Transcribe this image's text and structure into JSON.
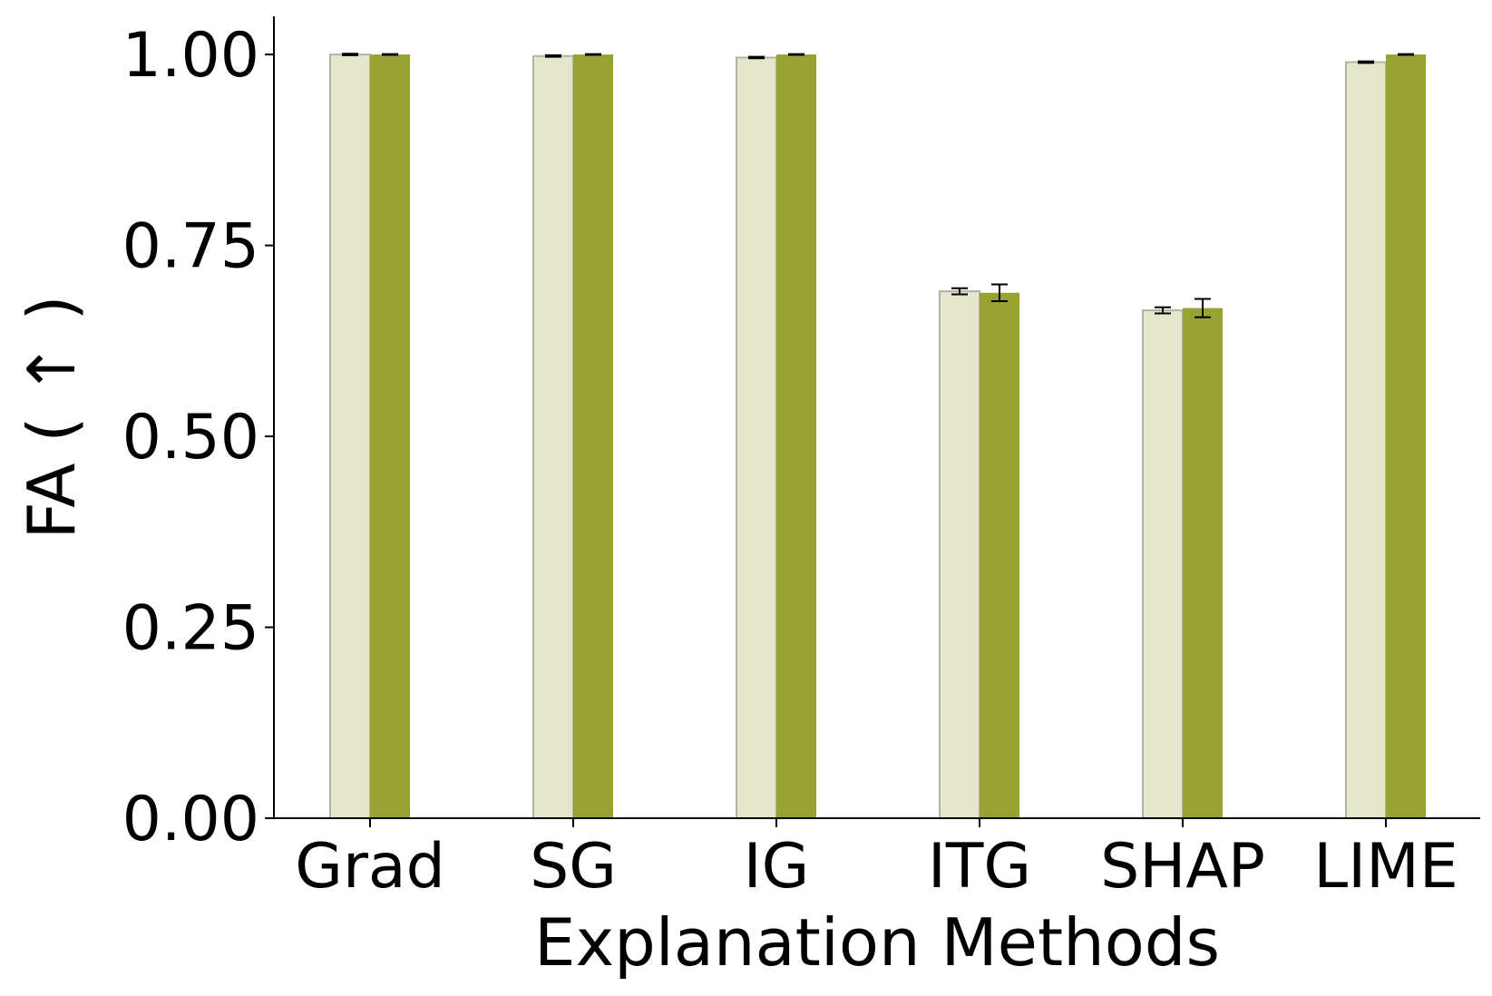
{
  "chart_data": {
    "type": "bar",
    "title": "",
    "xlabel": "Explanation Methods",
    "ylabel": "FA ( ↑ )",
    "categories": [
      "Grad",
      "SG",
      "IG",
      "ITG",
      "SHAP",
      "LIME"
    ],
    "ylim": [
      0,
      1.05
    ],
    "yticks": [
      0.0,
      0.25,
      0.5,
      0.75,
      1.0
    ],
    "ytick_labels": [
      "0.00",
      "0.25",
      "0.50",
      "0.75",
      "1.00"
    ],
    "series": [
      {
        "name": "series-1",
        "color": "#e4e7cc",
        "edge_color": "#b3b3a3",
        "values": [
          1.0,
          0.998,
          0.996,
          0.69,
          0.665,
          0.99
        ],
        "errors": [
          0.001,
          0.001,
          0.001,
          0.004,
          0.004,
          0.001
        ]
      },
      {
        "name": "series-2",
        "color": "#96a232",
        "edge_color": "#96a232",
        "values": [
          1.0,
          1.0,
          1.0,
          0.688,
          0.668,
          1.0
        ],
        "errors": [
          0.0005,
          0.0005,
          0.0005,
          0.011,
          0.012,
          0.0005
        ]
      }
    ],
    "grid": false,
    "legend": "none"
  }
}
